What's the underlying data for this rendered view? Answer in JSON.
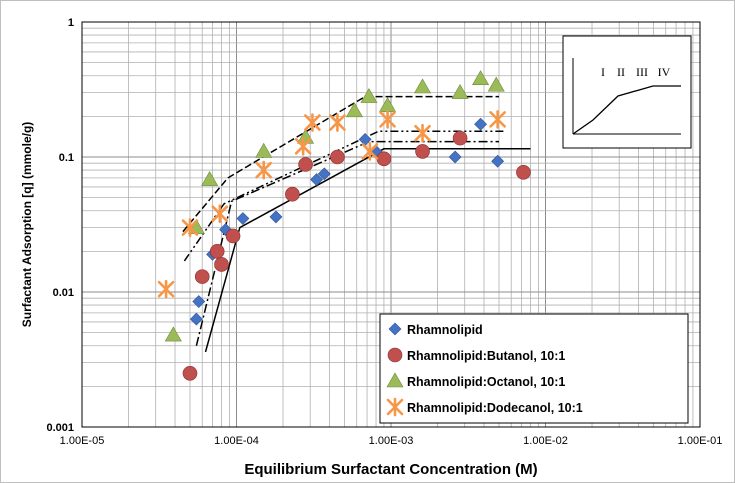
{
  "chart_data": {
    "type": "scatter",
    "xscale": "log",
    "yscale": "log",
    "xlim": [
      1e-05,
      0.1
    ],
    "ylim": [
      0.001,
      1
    ],
    "xlabel": "Equilibrium Surfactant Concentration (M)",
    "ylabel": "Surfactant Adsorption [q] (mmole/g)",
    "x_tick_labels": [
      "1.00E-05",
      "1.00E-04",
      "1.00E-03",
      "1.00E-02",
      "1.00E-01"
    ],
    "y_tick_labels": [
      "0.001",
      "0.01",
      "0.1",
      "1"
    ],
    "grid": "major and minor",
    "legend_position": "bottom-right",
    "series": [
      {
        "name": "Rhamnolipid",
        "marker": "diamond",
        "color": "#4472C4",
        "points": [
          [
            5.5e-05,
            0.0063
          ],
          [
            5.7e-05,
            0.0085
          ],
          [
            7e-05,
            0.019
          ],
          [
            8.5e-05,
            0.029
          ],
          [
            0.00011,
            0.035
          ],
          [
            0.00018,
            0.036
          ],
          [
            0.00033,
            0.068
          ],
          [
            0.00037,
            0.075
          ],
          [
            0.00068,
            0.135
          ],
          [
            0.0008,
            0.11
          ],
          [
            0.0026,
            0.1
          ],
          [
            0.0038,
            0.175
          ],
          [
            0.0049,
            0.093
          ]
        ]
      },
      {
        "name": "Rhamnolipid:Butanol, 10:1",
        "marker": "circle",
        "color": "#C0504D",
        "points": [
          [
            5e-05,
            0.0025
          ],
          [
            6e-05,
            0.013
          ],
          [
            7.5e-05,
            0.02
          ],
          [
            8e-05,
            0.016
          ],
          [
            9.5e-05,
            0.026
          ],
          [
            0.00023,
            0.053
          ],
          [
            0.00028,
            0.088
          ],
          [
            0.00045,
            0.1
          ],
          [
            0.0009,
            0.097
          ],
          [
            0.0016,
            0.11
          ],
          [
            0.0028,
            0.138
          ],
          [
            0.0072,
            0.077
          ]
        ]
      },
      {
        "name": "Rhamnolipid:Octanol, 10:1",
        "marker": "triangle",
        "color": "#9BBB59",
        "points": [
          [
            3.9e-05,
            0.0048
          ],
          [
            5.5e-05,
            0.03
          ],
          [
            6.7e-05,
            0.068
          ],
          [
            0.00015,
            0.11
          ],
          [
            0.00028,
            0.14
          ],
          [
            0.00058,
            0.22
          ],
          [
            0.00072,
            0.28
          ],
          [
            0.00095,
            0.24
          ],
          [
            0.0016,
            0.33
          ],
          [
            0.0028,
            0.3
          ],
          [
            0.0038,
            0.38
          ],
          [
            0.0048,
            0.34
          ]
        ]
      },
      {
        "name": "Rhamnolipid:Dodecanol, 10:1",
        "marker": "asterisk",
        "color": "#F79646",
        "points": [
          [
            3.5e-05,
            0.0105
          ],
          [
            5e-05,
            0.03
          ],
          [
            7.8e-05,
            0.038
          ],
          [
            0.00015,
            0.08
          ],
          [
            0.00027,
            0.12
          ],
          [
            0.00031,
            0.18
          ],
          [
            0.00045,
            0.18
          ],
          [
            0.00073,
            0.11
          ],
          [
            0.00095,
            0.19
          ],
          [
            0.0016,
            0.15
          ],
          [
            0.0049,
            0.19
          ]
        ]
      }
    ],
    "trend_lines": [
      {
        "style": "solid",
        "points": [
          [
            6.3e-05,
            0.0036
          ],
          [
            0.000105,
            0.03
          ],
          [
            0.0009,
            0.115
          ],
          [
            0.008,
            0.115
          ]
        ]
      },
      {
        "style": "dash-dot",
        "points": [
          [
            5.5e-05,
            0.004
          ],
          [
            9.3e-05,
            0.047
          ],
          [
            0.00072,
            0.13
          ],
          [
            0.005,
            0.13
          ]
        ]
      },
      {
        "style": "dash-dot-dot",
        "points": [
          [
            4.6e-05,
            0.017
          ],
          [
            8.3e-05,
            0.045
          ],
          [
            0.00083,
            0.155
          ],
          [
            0.0055,
            0.155
          ]
        ]
      },
      {
        "style": "dashed",
        "points": [
          [
            4.5e-05,
            0.028
          ],
          [
            8.8e-05,
            0.07
          ],
          [
            0.00068,
            0.28
          ],
          [
            0.005,
            0.28
          ]
        ]
      }
    ],
    "inset": {
      "labels": [
        "I",
        "II",
        "III",
        "IV"
      ]
    }
  }
}
